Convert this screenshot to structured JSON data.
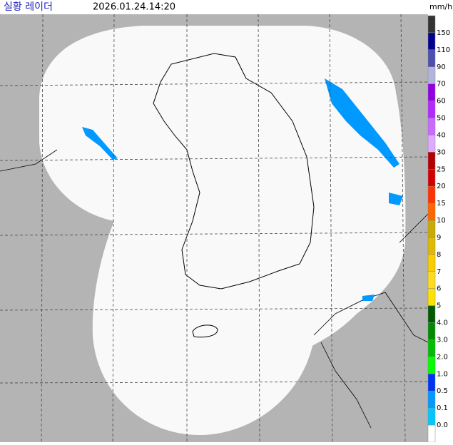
{
  "header": {
    "title": "실황 레이더",
    "time": "2026.01.24.14:20",
    "unit": "mm/h"
  },
  "legend": {
    "labels": [
      "150",
      "110",
      "90",
      "70",
      "60",
      "50",
      "40",
      "30",
      "25",
      "20",
      "15",
      "10",
      "9",
      "8",
      "7",
      "6",
      "5",
      "4.0",
      "3.0",
      "2.0",
      "1.0",
      "0.5",
      "0.1",
      "0.0"
    ],
    "colors": [
      "#333333",
      "#000390",
      "#4c4eb1",
      "#b3b4de",
      "#9300e4",
      "#b329ff",
      "#c969ff",
      "#e0a9ff",
      "#b40000",
      "#d20000",
      "#ff3300",
      "#ff6600",
      "#ccaa00",
      "#e0b900",
      "#f9cd00",
      "#ffdc1f",
      "#ffe100",
      "#005a00",
      "#008c00",
      "#00be00",
      "#00ff00",
      "#0033f5",
      "#0099ff",
      "#00c8ff",
      "#ffffff"
    ]
  }
}
